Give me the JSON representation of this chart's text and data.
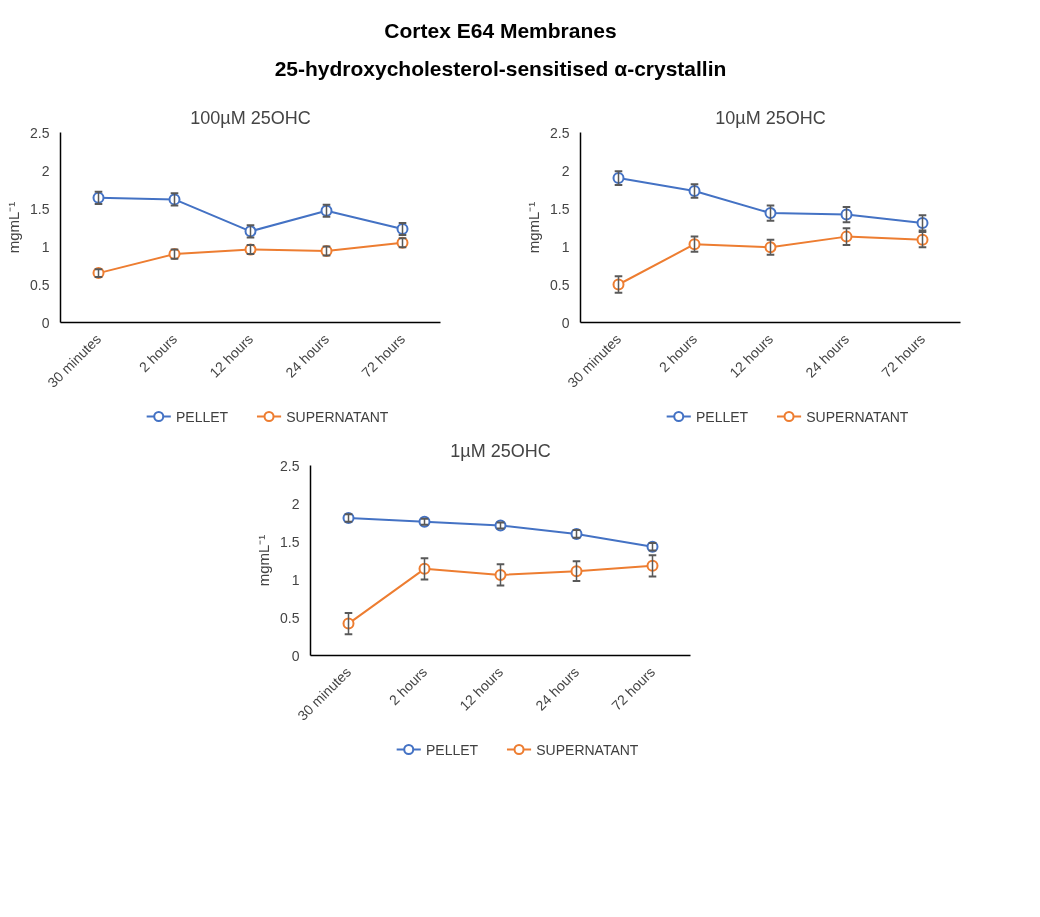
{
  "chart_data": [
    {
      "type": "other",
      "title": "Cortex E64 Membranes",
      "subtitle": "25-hydroxycholesterol-sensitised α-crystallin"
    },
    {
      "type": "line",
      "title": "100µM 25OHC",
      "ylabel": "mgmL⁻¹",
      "categories": [
        "30 minutes",
        "2 hours",
        "12 hours",
        "24 hours",
        "72 hours"
      ],
      "ylim": [
        0,
        2.5
      ],
      "yticks": [
        0,
        0.5,
        1,
        1.5,
        2,
        2.5
      ],
      "grid": false,
      "legend": "bottom",
      "marker": "circle",
      "series": [
        {
          "name": "PELLET",
          "color": "#4472c4",
          "values": [
            1.64,
            1.62,
            1.2,
            1.47,
            1.23
          ],
          "errors": [
            0.08,
            0.08,
            0.08,
            0.08,
            0.08
          ]
        },
        {
          "name": "SUPERNATANT",
          "color": "#ed7d31",
          "values": [
            0.65,
            0.9,
            0.96,
            0.94,
            1.05
          ],
          "errors": [
            0.05,
            0.06,
            0.06,
            0.06,
            0.06
          ]
        }
      ]
    },
    {
      "type": "line",
      "title": "10µM 25OHC",
      "ylabel": "mgmL⁻¹",
      "categories": [
        "30 minutes",
        "2 hours",
        "12 hours",
        "24 hours",
        "72 hours"
      ],
      "ylim": [
        0,
        2.5
      ],
      "yticks": [
        0,
        0.5,
        1,
        1.5,
        2,
        2.5
      ],
      "grid": false,
      "legend": "bottom",
      "marker": "circle",
      "series": [
        {
          "name": "PELLET",
          "color": "#4472c4",
          "values": [
            1.9,
            1.73,
            1.44,
            1.42,
            1.31
          ],
          "errors": [
            0.09,
            0.09,
            0.1,
            0.1,
            0.1
          ]
        },
        {
          "name": "SUPERNATANT",
          "color": "#ed7d31",
          "values": [
            0.5,
            1.03,
            0.99,
            1.13,
            1.09
          ],
          "errors": [
            0.11,
            0.1,
            0.1,
            0.11,
            0.1
          ]
        }
      ]
    },
    {
      "type": "line",
      "title": "1µM 25OHC",
      "ylabel": "mgmL⁻¹",
      "categories": [
        "30 minutes",
        "2 hours",
        "12 hours",
        "24 hours",
        "72 hours"
      ],
      "ylim": [
        0,
        2.5
      ],
      "yticks": [
        0,
        0.5,
        1,
        1.5,
        2,
        2.5
      ],
      "grid": false,
      "legend": "bottom",
      "marker": "circle",
      "series": [
        {
          "name": "PELLET",
          "color": "#4472c4",
          "values": [
            1.81,
            1.76,
            1.71,
            1.6,
            1.43
          ],
          "errors": [
            0.05,
            0.04,
            0.04,
            0.05,
            0.05
          ]
        },
        {
          "name": "SUPERNATANT",
          "color": "#ed7d31",
          "values": [
            0.42,
            1.14,
            1.06,
            1.11,
            1.18
          ],
          "errors": [
            0.14,
            0.14,
            0.14,
            0.13,
            0.14
          ]
        }
      ]
    }
  ]
}
